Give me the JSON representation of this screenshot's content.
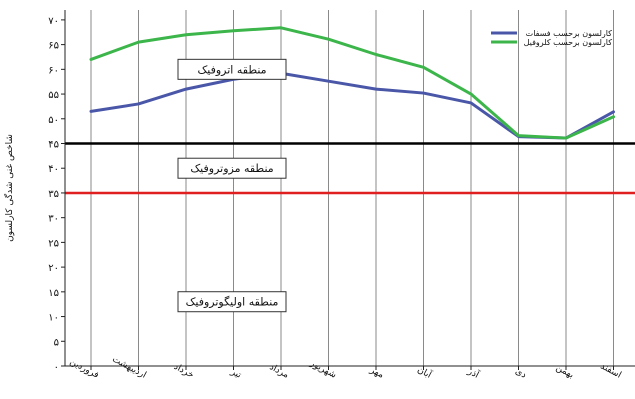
{
  "chart_data": {
    "type": "line",
    "ylabel": "شاخص غنی شدگی کارلسون",
    "ylim": [
      0,
      72
    ],
    "yticks": [
      {
        "value": 0,
        "label": "۰"
      },
      {
        "value": 5,
        "label": "۵"
      },
      {
        "value": 10,
        "label": "۱۰"
      },
      {
        "value": 15,
        "label": "۱۵"
      },
      {
        "value": 20,
        "label": "۲۰"
      },
      {
        "value": 25,
        "label": "۲۵"
      },
      {
        "value": 30,
        "label": "۳۰"
      },
      {
        "value": 35,
        "label": "۳۵"
      },
      {
        "value": 40,
        "label": "۴۰"
      },
      {
        "value": 45,
        "label": "۴۵"
      },
      {
        "value": 50,
        "label": "۵۰"
      },
      {
        "value": 55,
        "label": "۵۵"
      },
      {
        "value": 60,
        "label": "۶۰"
      },
      {
        "value": 65,
        "label": "۶۵"
      },
      {
        "value": 70,
        "label": "۷۰"
      }
    ],
    "categories": [
      "فروردین",
      "اردیبهشت",
      "خرداد",
      "تیر",
      "مرداد",
      "شهریور",
      "مهر",
      "آبان",
      "آذر",
      "دی",
      "بهمن",
      "اسفند"
    ],
    "series": [
      {
        "name": "کارلسون برحسب فسفات",
        "color": "#4a57a8",
        "values": [
          51.5,
          53,
          56,
          58,
          59.2,
          57.6,
          56,
          55.2,
          53.2,
          46.4,
          46.1,
          51.4
        ]
      },
      {
        "name": "کارلسون برحسب کلروفیل",
        "color": "#3cb54a",
        "values": [
          62,
          65.5,
          67,
          67.8,
          68.4,
          66.1,
          63,
          60.4,
          55,
          46.6,
          46.1,
          50.4
        ]
      }
    ],
    "reference_lines": [
      {
        "value": 45,
        "color": "#000000"
      },
      {
        "value": 35,
        "color": "#e02020"
      }
    ],
    "zones": [
      {
        "label": "منطقه اتروفیک",
        "y": 60
      },
      {
        "label": "منطقه مزوتروفیک",
        "y": 40
      },
      {
        "label": "منطقه اولیگوتروفیک",
        "y": 13
      }
    ],
    "legend_position": "top-right",
    "grid": "vertical"
  }
}
